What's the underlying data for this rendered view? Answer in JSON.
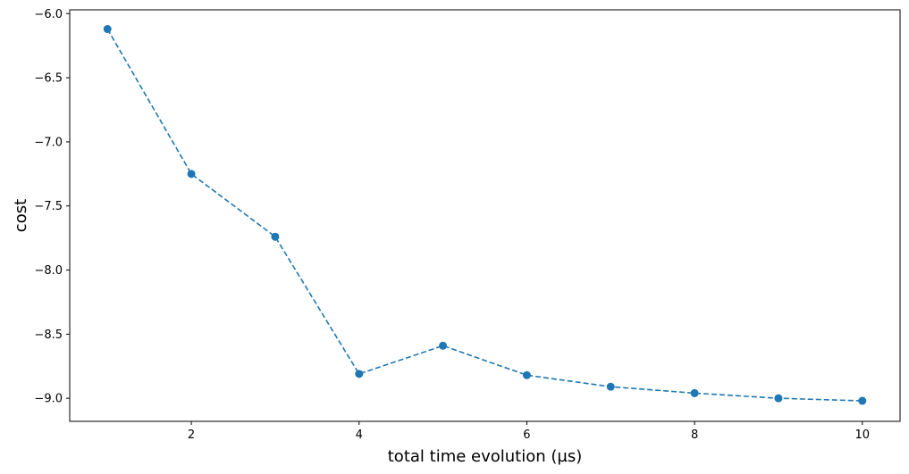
{
  "chart_data": {
    "type": "line",
    "title": "",
    "xlabel": "total time evolution (µs)",
    "ylabel": "cost",
    "x": [
      1,
      2,
      3,
      4,
      5,
      6,
      7,
      8,
      9,
      10
    ],
    "series": [
      {
        "values": [
          -6.12,
          -7.25,
          -7.74,
          -8.81,
          -8.59,
          -8.82,
          -8.91,
          -8.96,
          -9.0,
          -9.02
        ],
        "color": "#1f77b4",
        "line_style": "dashed",
        "marker": "circle"
      }
    ],
    "xlim": [
      0.55,
      10.45
    ],
    "ylim": [
      -9.18,
      -5.97
    ],
    "xticks": [
      2,
      4,
      6,
      8,
      10
    ],
    "xtick_labels": [
      "2",
      "4",
      "6",
      "8",
      "10"
    ],
    "yticks": [
      -6.0,
      -6.5,
      -7.0,
      -7.5,
      -8.0,
      -8.5,
      -9.0
    ],
    "ytick_labels": [
      "−6.0",
      "−6.5",
      "−7.0",
      "−7.5",
      "−8.0",
      "−8.5",
      "−9.0"
    ],
    "grid": false,
    "legend": "none"
  }
}
